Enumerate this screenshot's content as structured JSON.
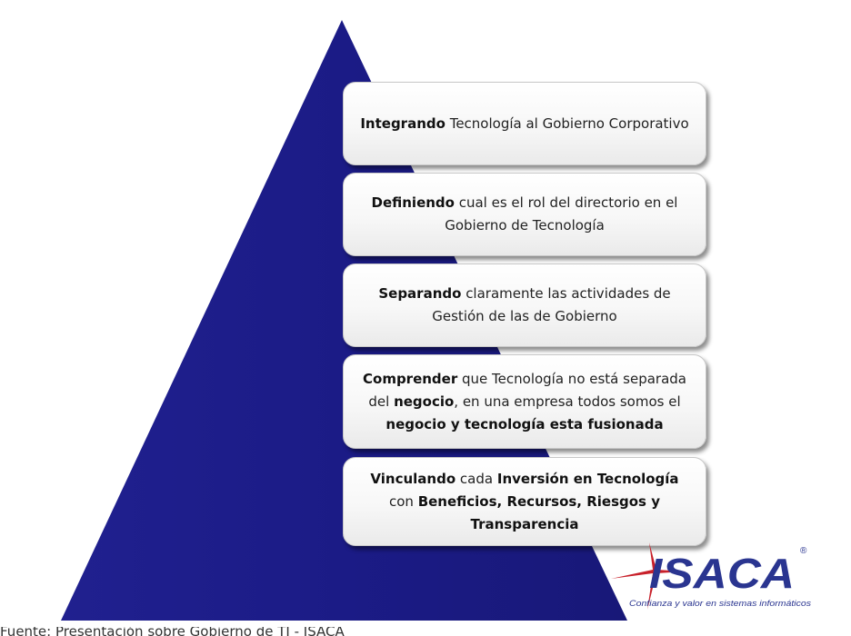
{
  "colors": {
    "pyramid": "#1f1f8c",
    "box_border": "#c7c7c7",
    "logo_red": "#c8202a",
    "logo_blue": "#2a3590"
  },
  "steps": [
    {
      "segments": [
        {
          "t": "Integrando",
          "b": true
        },
        {
          "t": " Tecnología al Gobierno Corporativo",
          "b": false
        }
      ]
    },
    {
      "segments": [
        {
          "t": "Definiendo",
          "b": true
        },
        {
          "t": " cual es el rol del directorio en el Gobierno de Tecnología",
          "b": false
        }
      ]
    },
    {
      "segments": [
        {
          "t": "Separando",
          "b": true
        },
        {
          "t": " claramente las actividades de Gestión de las de Gobierno",
          "b": false
        }
      ]
    },
    {
      "segments": [
        {
          "t": "Comprender",
          "b": true
        },
        {
          "t": " que Tecnología no está separada del ",
          "b": false
        },
        {
          "t": "negocio",
          "b": true
        },
        {
          "t": ", en una empresa todos somos el ",
          "b": false
        },
        {
          "t": "negocio y tecnología esta fusionada",
          "b": true
        }
      ]
    },
    {
      "segments": [
        {
          "t": "Vinculando",
          "b": true
        },
        {
          "t": " cada ",
          "b": false
        },
        {
          "t": "Inversión en Tecnología",
          "b": true
        },
        {
          "t": " con ",
          "b": false
        },
        {
          "t": "Beneficios, Recursos, Riesgos y Transparencia",
          "b": true
        }
      ]
    }
  ],
  "logo": {
    "name": "ISACA",
    "mark": "®",
    "tagline": "Confianza y valor en sistemas informáticos"
  },
  "footer_text": "Fuente: Presentación sobre Gobierno de TI - ISACA"
}
